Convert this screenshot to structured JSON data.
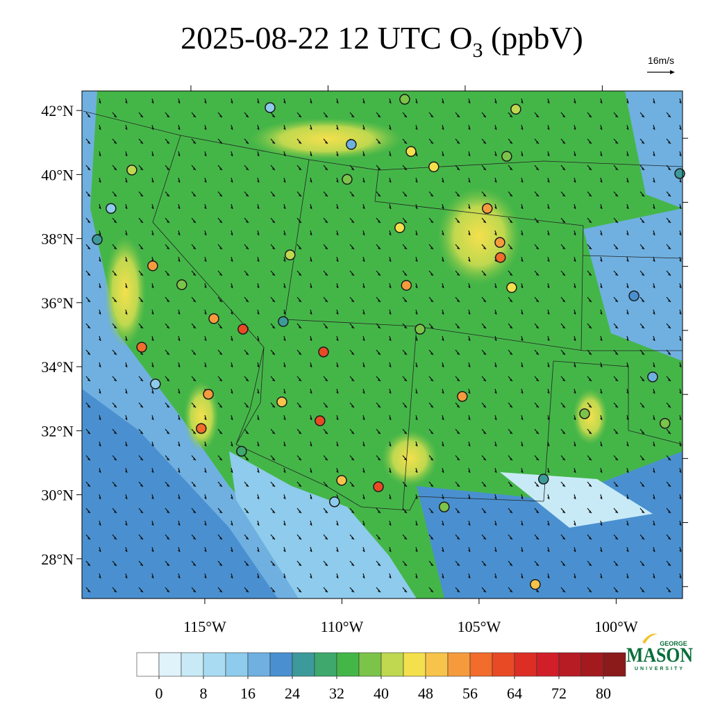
{
  "title": [
    "2025-08-22 12 UTC O",
    "3",
    " (ppbV)"
  ],
  "wind_reference": "16m/s",
  "map": {
    "xlim": [
      -119.48,
      -97.58
    ],
    "ylim": [
      26.76,
      42.61
    ],
    "lat_ticks": [
      {
        "value": 42,
        "label": "42°N"
      },
      {
        "value": 40,
        "label": "40°N"
      },
      {
        "value": 38,
        "label": "38°N"
      },
      {
        "value": 36,
        "label": "36°N"
      },
      {
        "value": 34,
        "label": "34°N"
      },
      {
        "value": 32,
        "label": "32°N"
      },
      {
        "value": 30,
        "label": "30°N"
      },
      {
        "value": 28,
        "label": "28°N"
      }
    ],
    "lon_ticks": [
      {
        "value": -115,
        "label": "115°W"
      },
      {
        "value": -110,
        "label": "110°W"
      },
      {
        "value": -105,
        "label": "105°W"
      },
      {
        "value": -100,
        "label": "100°W"
      }
    ],
    "stations": [
      {
        "lon": -112.62,
        "lat": 42.09,
        "value": 14
      },
      {
        "lon": -109.66,
        "lat": 40.94,
        "value": 16
      },
      {
        "lon": -107.71,
        "lat": 42.35,
        "value": 36
      },
      {
        "lon": -103.66,
        "lat": 42.04,
        "value": 40
      },
      {
        "lon": -107.48,
        "lat": 40.72,
        "value": 46
      },
      {
        "lon": -106.65,
        "lat": 40.24,
        "value": 46
      },
      {
        "lon": -117.66,
        "lat": 40.14,
        "value": 42
      },
      {
        "lon": -118.42,
        "lat": 38.94,
        "value": 14
      },
      {
        "lon": -104.24,
        "lat": 37.88,
        "value": 54
      },
      {
        "lon": -104.22,
        "lat": 37.41,
        "value": 56
      },
      {
        "lon": -103.81,
        "lat": 36.47,
        "value": 47
      },
      {
        "lon": -99.35,
        "lat": 36.21,
        "value": 22
      },
      {
        "lon": -110.67,
        "lat": 34.46,
        "value": 62
      },
      {
        "lon": -113.61,
        "lat": 35.17,
        "value": 60
      },
      {
        "lon": -117.3,
        "lat": 34.61,
        "value": 58
      },
      {
        "lon": -116.9,
        "lat": 37.15,
        "value": 54
      },
      {
        "lon": -114.87,
        "lat": 33.14,
        "value": 55
      },
      {
        "lon": -115.13,
        "lat": 32.07,
        "value": 56
      },
      {
        "lon": -110.8,
        "lat": 32.31,
        "value": 60
      },
      {
        "lon": -108.67,
        "lat": 30.25,
        "value": 62
      },
      {
        "lon": -105.61,
        "lat": 33.07,
        "value": 54
      },
      {
        "lon": -107.65,
        "lat": 36.54,
        "value": 52
      },
      {
        "lon": -112.19,
        "lat": 32.9,
        "value": 48
      },
      {
        "lon": -110.01,
        "lat": 30.45,
        "value": 48
      },
      {
        "lon": -102.95,
        "lat": 27.2,
        "value": 48
      },
      {
        "lon": -110.27,
        "lat": 29.78,
        "value": 14
      },
      {
        "lon": -113.66,
        "lat": 31.36,
        "value": 30
      },
      {
        "lon": -102.65,
        "lat": 30.49,
        "value": 24
      },
      {
        "lon": -97.68,
        "lat": 40.03,
        "value": 24
      },
      {
        "lon": -98.67,
        "lat": 33.68,
        "value": 16
      },
      {
        "lon": -101.15,
        "lat": 32.53,
        "value": 36
      },
      {
        "lon": -98.22,
        "lat": 32.23,
        "value": 36
      },
      {
        "lon": -112.14,
        "lat": 35.41,
        "value": 24
      },
      {
        "lon": -107.15,
        "lat": 35.17,
        "value": 38
      },
      {
        "lon": -109.81,
        "lat": 39.85,
        "value": 36
      },
      {
        "lon": -107.89,
        "lat": 38.34,
        "value": 47
      },
      {
        "lon": -104.7,
        "lat": 38.94,
        "value": 53
      },
      {
        "lon": -111.89,
        "lat": 37.49,
        "value": 42
      },
      {
        "lon": -114.67,
        "lat": 35.5,
        "value": 54
      },
      {
        "lon": -106.27,
        "lat": 29.62,
        "value": 36
      },
      {
        "lon": -115.84,
        "lat": 36.56,
        "value": 38
      },
      {
        "lon": -116.8,
        "lat": 33.46,
        "value": 14
      },
      {
        "lon": -118.92,
        "lat": 37.97,
        "value": 24
      },
      {
        "lon": -103.99,
        "lat": 40.57,
        "value": 38
      }
    ]
  },
  "colorbar": {
    "levels": [
      0,
      4,
      8,
      12,
      16,
      20,
      24,
      28,
      32,
      36,
      40,
      44,
      48,
      52,
      56,
      60,
      64,
      68,
      72,
      76,
      80
    ],
    "colors": [
      "#ffffff",
      "#e0f3fb",
      "#c8eaf7",
      "#a9dcf3",
      "#8ecbec",
      "#6fb0e0",
      "#4a90d0",
      "#3d9a9a",
      "#3ea86d",
      "#44b648",
      "#7cc449",
      "#bfd84f",
      "#f4e04d",
      "#f8c34a",
      "#f59b3d",
      "#f26c2b",
      "#e84a26",
      "#dd2e26",
      "#d11f2a",
      "#b71c24",
      "#a31a1e",
      "#8b1a1a"
    ],
    "ticks": [
      0,
      8,
      16,
      24,
      32,
      40,
      48,
      56,
      64,
      72,
      80
    ]
  },
  "logo": {
    "top": "GEORGE",
    "main": "MASON",
    "bottom": "UNIVERSITY"
  }
}
